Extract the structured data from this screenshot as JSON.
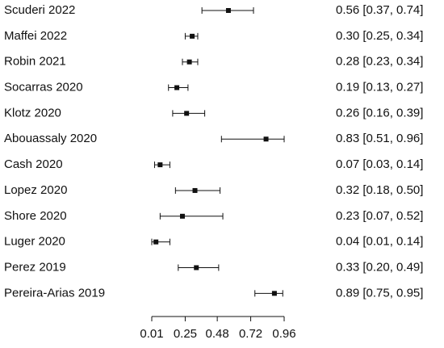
{
  "chart_data": {
    "type": "forest",
    "title": "",
    "xlabel": "",
    "ylabel": "",
    "xlim": [
      0.01,
      0.96
    ],
    "xticks": [
      0.01,
      0.25,
      0.48,
      0.72,
      0.96
    ],
    "xtick_labels": [
      "0.01",
      "0.25",
      "0.48",
      "0.72",
      "0.96"
    ],
    "grid": false,
    "studies": [
      {
        "label": "Scuderi 2022",
        "estimate": 0.56,
        "lower": 0.37,
        "upper": 0.74,
        "text": "0.56 [0.37, 0.74]"
      },
      {
        "label": "Maffei 2022",
        "estimate": 0.3,
        "lower": 0.25,
        "upper": 0.34,
        "text": "0.30 [0.25, 0.34]"
      },
      {
        "label": "Robin 2021",
        "estimate": 0.28,
        "lower": 0.23,
        "upper": 0.34,
        "text": "0.28 [0.23, 0.34]"
      },
      {
        "label": "Socarras 2020",
        "estimate": 0.19,
        "lower": 0.13,
        "upper": 0.27,
        "text": "0.19 [0.13, 0.27]"
      },
      {
        "label": "Klotz 2020",
        "estimate": 0.26,
        "lower": 0.16,
        "upper": 0.39,
        "text": "0.26 [0.16, 0.39]"
      },
      {
        "label": "Abouassaly 2020",
        "estimate": 0.83,
        "lower": 0.51,
        "upper": 0.96,
        "text": "0.83 [0.51, 0.96]"
      },
      {
        "label": "Cash 2020",
        "estimate": 0.07,
        "lower": 0.03,
        "upper": 0.14,
        "text": "0.07 [0.03, 0.14]"
      },
      {
        "label": "Lopez 2020",
        "estimate": 0.32,
        "lower": 0.18,
        "upper": 0.5,
        "text": "0.32 [0.18, 0.50]"
      },
      {
        "label": "Shore 2020",
        "estimate": 0.23,
        "lower": 0.07,
        "upper": 0.52,
        "text": "0.23 [0.07, 0.52]"
      },
      {
        "label": "Luger 2020",
        "estimate": 0.04,
        "lower": 0.01,
        "upper": 0.14,
        "text": "0.04 [0.01, 0.14]"
      },
      {
        "label": "Perez 2019",
        "estimate": 0.33,
        "lower": 0.2,
        "upper": 0.49,
        "text": "0.33 [0.20, 0.49]"
      },
      {
        "label": "Pereira-Arias 2019",
        "estimate": 0.89,
        "lower": 0.75,
        "upper": 0.95,
        "text": "0.89 [0.75, 0.95]"
      }
    ]
  }
}
